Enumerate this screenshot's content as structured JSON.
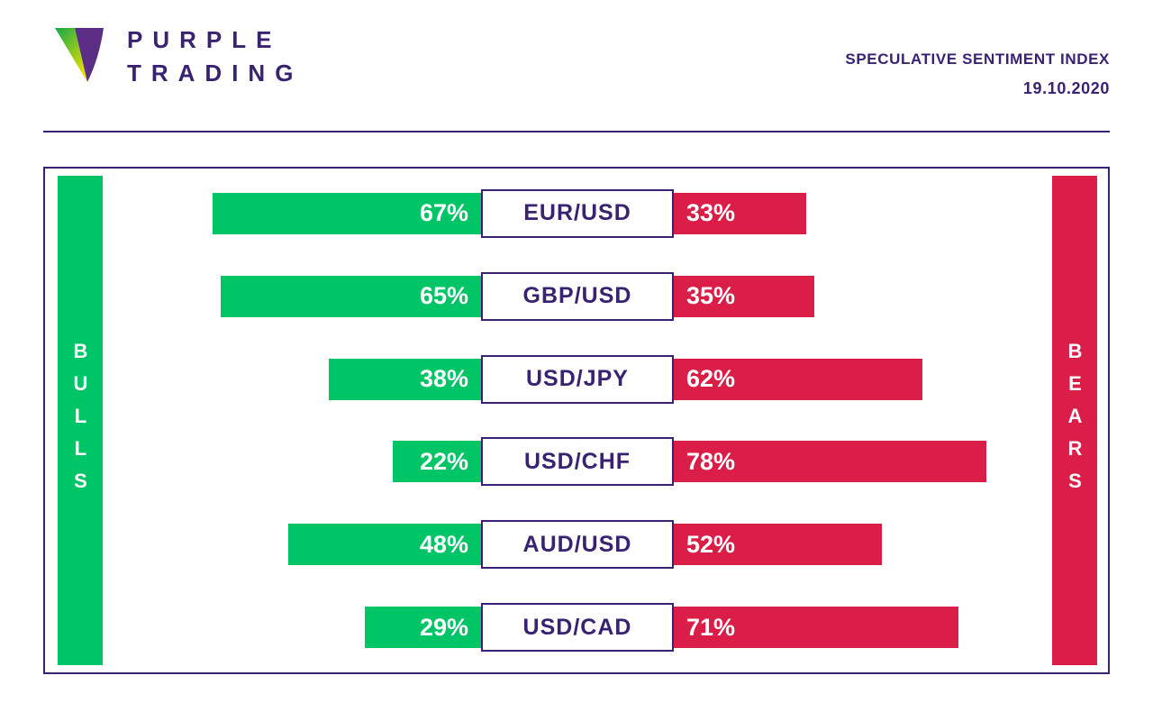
{
  "header": {
    "brand_line1": "PURPLE",
    "brand_line2": "TRADING",
    "title": "SPECULATIVE SENTIMENT INDEX",
    "date": "19.10.2020"
  },
  "chart_data": {
    "type": "bar",
    "orientation": "horizontal-diverging",
    "title": "SPECULATIVE SENTIMENT INDEX",
    "subtitle": "19.10.2020",
    "left_axis_label": "BULLS",
    "right_axis_label": "BEARS",
    "categories": [
      "EUR/USD",
      "GBP/USD",
      "USD/JPY",
      "USD/CHF",
      "AUD/USD",
      "USD/CAD"
    ],
    "series": [
      {
        "name": "Bulls",
        "unit": "%",
        "color": "#00C566",
        "values": [
          67,
          65,
          38,
          22,
          48,
          29
        ]
      },
      {
        "name": "Bears",
        "unit": "%",
        "color": "#DA1E48",
        "values": [
          33,
          35,
          62,
          78,
          52,
          71
        ]
      }
    ],
    "value_range": [
      0,
      100
    ],
    "grid": false,
    "legend_position": "none"
  },
  "colors": {
    "accent_purple": "#3A2272",
    "bulls_green": "#00C566",
    "bears_red": "#DA1E48",
    "logo_green": "#15A84B",
    "logo_yellow": "#E8E100",
    "logo_purple": "#5B2D84"
  }
}
